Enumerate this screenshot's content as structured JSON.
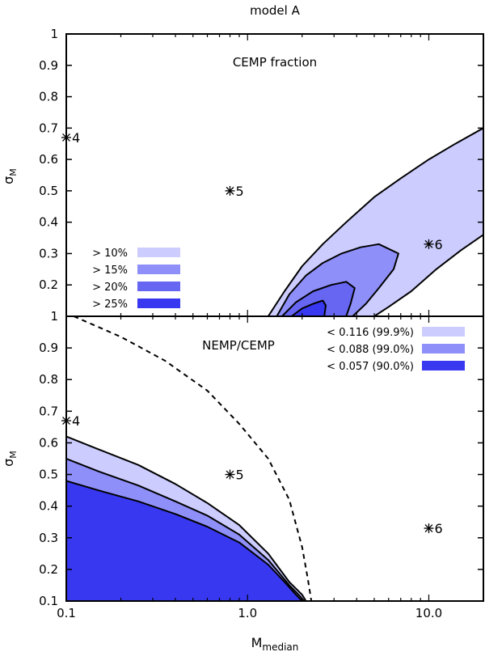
{
  "figure": {
    "title": "model A",
    "xlabel_main": "M",
    "xlabel_sub": "median",
    "ylabel_main": "σ",
    "ylabel_sub": "M"
  },
  "chart_data": [
    {
      "type": "area",
      "panel": "top",
      "title": "CEMP fraction",
      "xscale": "log",
      "xlim": [
        0.1,
        20
      ],
      "ylim": [
        0.1,
        1.0
      ],
      "x_ticks": [
        "0.1",
        "1.0",
        "10.0"
      ],
      "y_ticks": [
        "0.1",
        "0.2",
        "0.3",
        "0.4",
        "0.5",
        "0.6",
        "0.7",
        "0.8",
        "0.9",
        "1"
      ],
      "legend_position": "bottom-left",
      "series": [
        {
          "name": "> 10%",
          "color": "#ccccff",
          "x": [
            1.3,
            1.6,
            2.0,
            2.6,
            3.5,
            5.0,
            7.0,
            10.0,
            14.0,
            20.0,
            20.0,
            15.0,
            11.0,
            8.0,
            6.0,
            5.0
          ],
          "y": [
            0.1,
            0.18,
            0.26,
            0.33,
            0.4,
            0.48,
            0.54,
            0.6,
            0.65,
            0.7,
            0.36,
            0.31,
            0.25,
            0.18,
            0.13,
            0.1
          ]
        },
        {
          "name": "> 15%",
          "color": "#8f8ff9",
          "x": [
            1.45,
            1.7,
            2.1,
            2.6,
            3.3,
            4.2,
            5.3,
            6.8,
            6.4,
            5.3,
            4.5,
            3.8
          ],
          "y": [
            0.1,
            0.17,
            0.23,
            0.27,
            0.3,
            0.32,
            0.33,
            0.3,
            0.25,
            0.19,
            0.14,
            0.1
          ]
        },
        {
          "name": "> 20%",
          "color": "#6666f2",
          "x": [
            1.55,
            1.85,
            2.3,
            2.9,
            3.5,
            3.9,
            3.7,
            3.5
          ],
          "y": [
            0.1,
            0.145,
            0.18,
            0.2,
            0.21,
            0.19,
            0.14,
            0.1
          ]
        },
        {
          "name": "> 25%",
          "color": "#3838f0",
          "x": [
            1.75,
            2.0,
            2.3,
            2.6,
            2.7,
            2.65
          ],
          "y": [
            0.1,
            0.125,
            0.14,
            0.15,
            0.135,
            0.1
          ]
        }
      ],
      "points": [
        {
          "label": "4",
          "x": 0.1,
          "y": 0.67
        },
        {
          "label": "5",
          "x": 0.8,
          "y": 0.5
        },
        {
          "label": "6",
          "x": 10.0,
          "y": 0.33
        }
      ]
    },
    {
      "type": "area",
      "panel": "bottom",
      "title": "NEMP/CEMP",
      "xscale": "log",
      "xlim": [
        0.1,
        20
      ],
      "ylim": [
        0.1,
        1.0
      ],
      "x_ticks": [
        "0.1",
        "1.0",
        "10.0"
      ],
      "y_ticks": [
        "0.1",
        "0.2",
        "0.3",
        "0.4",
        "0.5",
        "0.6",
        "0.7",
        "0.8",
        "0.9",
        "1"
      ],
      "legend_position": "top-right",
      "series": [
        {
          "name": "< 0.116 (99.9%)",
          "color": "#ccccff",
          "x": [
            0.1,
            0.15,
            0.25,
            0.4,
            0.6,
            0.9,
            1.3,
            1.7,
            2.0,
            2.1
          ],
          "y": [
            0.62,
            0.58,
            0.53,
            0.47,
            0.41,
            0.34,
            0.25,
            0.16,
            0.12,
            0.1
          ]
        },
        {
          "name": "< 0.088 (99.0%)",
          "color": "#8f8ff9",
          "x": [
            0.1,
            0.15,
            0.25,
            0.4,
            0.6,
            0.9,
            1.3,
            1.7,
            1.95,
            2.05
          ],
          "y": [
            0.55,
            0.51,
            0.465,
            0.415,
            0.37,
            0.31,
            0.23,
            0.15,
            0.115,
            0.1
          ]
        },
        {
          "name": "< 0.057 (90.0%)",
          "color": "#3838f0",
          "x": [
            0.1,
            0.15,
            0.25,
            0.4,
            0.6,
            0.9,
            1.3,
            1.6,
            1.85,
            2.0
          ],
          "y": [
            0.48,
            0.45,
            0.415,
            0.375,
            0.335,
            0.285,
            0.215,
            0.16,
            0.12,
            0.1
          ]
        }
      ],
      "boundary": {
        "name": "",
        "style": "dashed",
        "x": [
          0.11,
          0.2,
          0.35,
          0.6,
          0.9,
          1.3,
          1.7,
          2.0,
          2.15,
          2.25
        ],
        "y": [
          1.0,
          0.935,
          0.86,
          0.765,
          0.66,
          0.55,
          0.42,
          0.27,
          0.17,
          0.1
        ]
      },
      "points": [
        {
          "label": "4",
          "x": 0.1,
          "y": 0.67
        },
        {
          "label": "5",
          "x": 0.8,
          "y": 0.5
        },
        {
          "label": "6",
          "x": 10.0,
          "y": 0.33
        }
      ]
    }
  ]
}
